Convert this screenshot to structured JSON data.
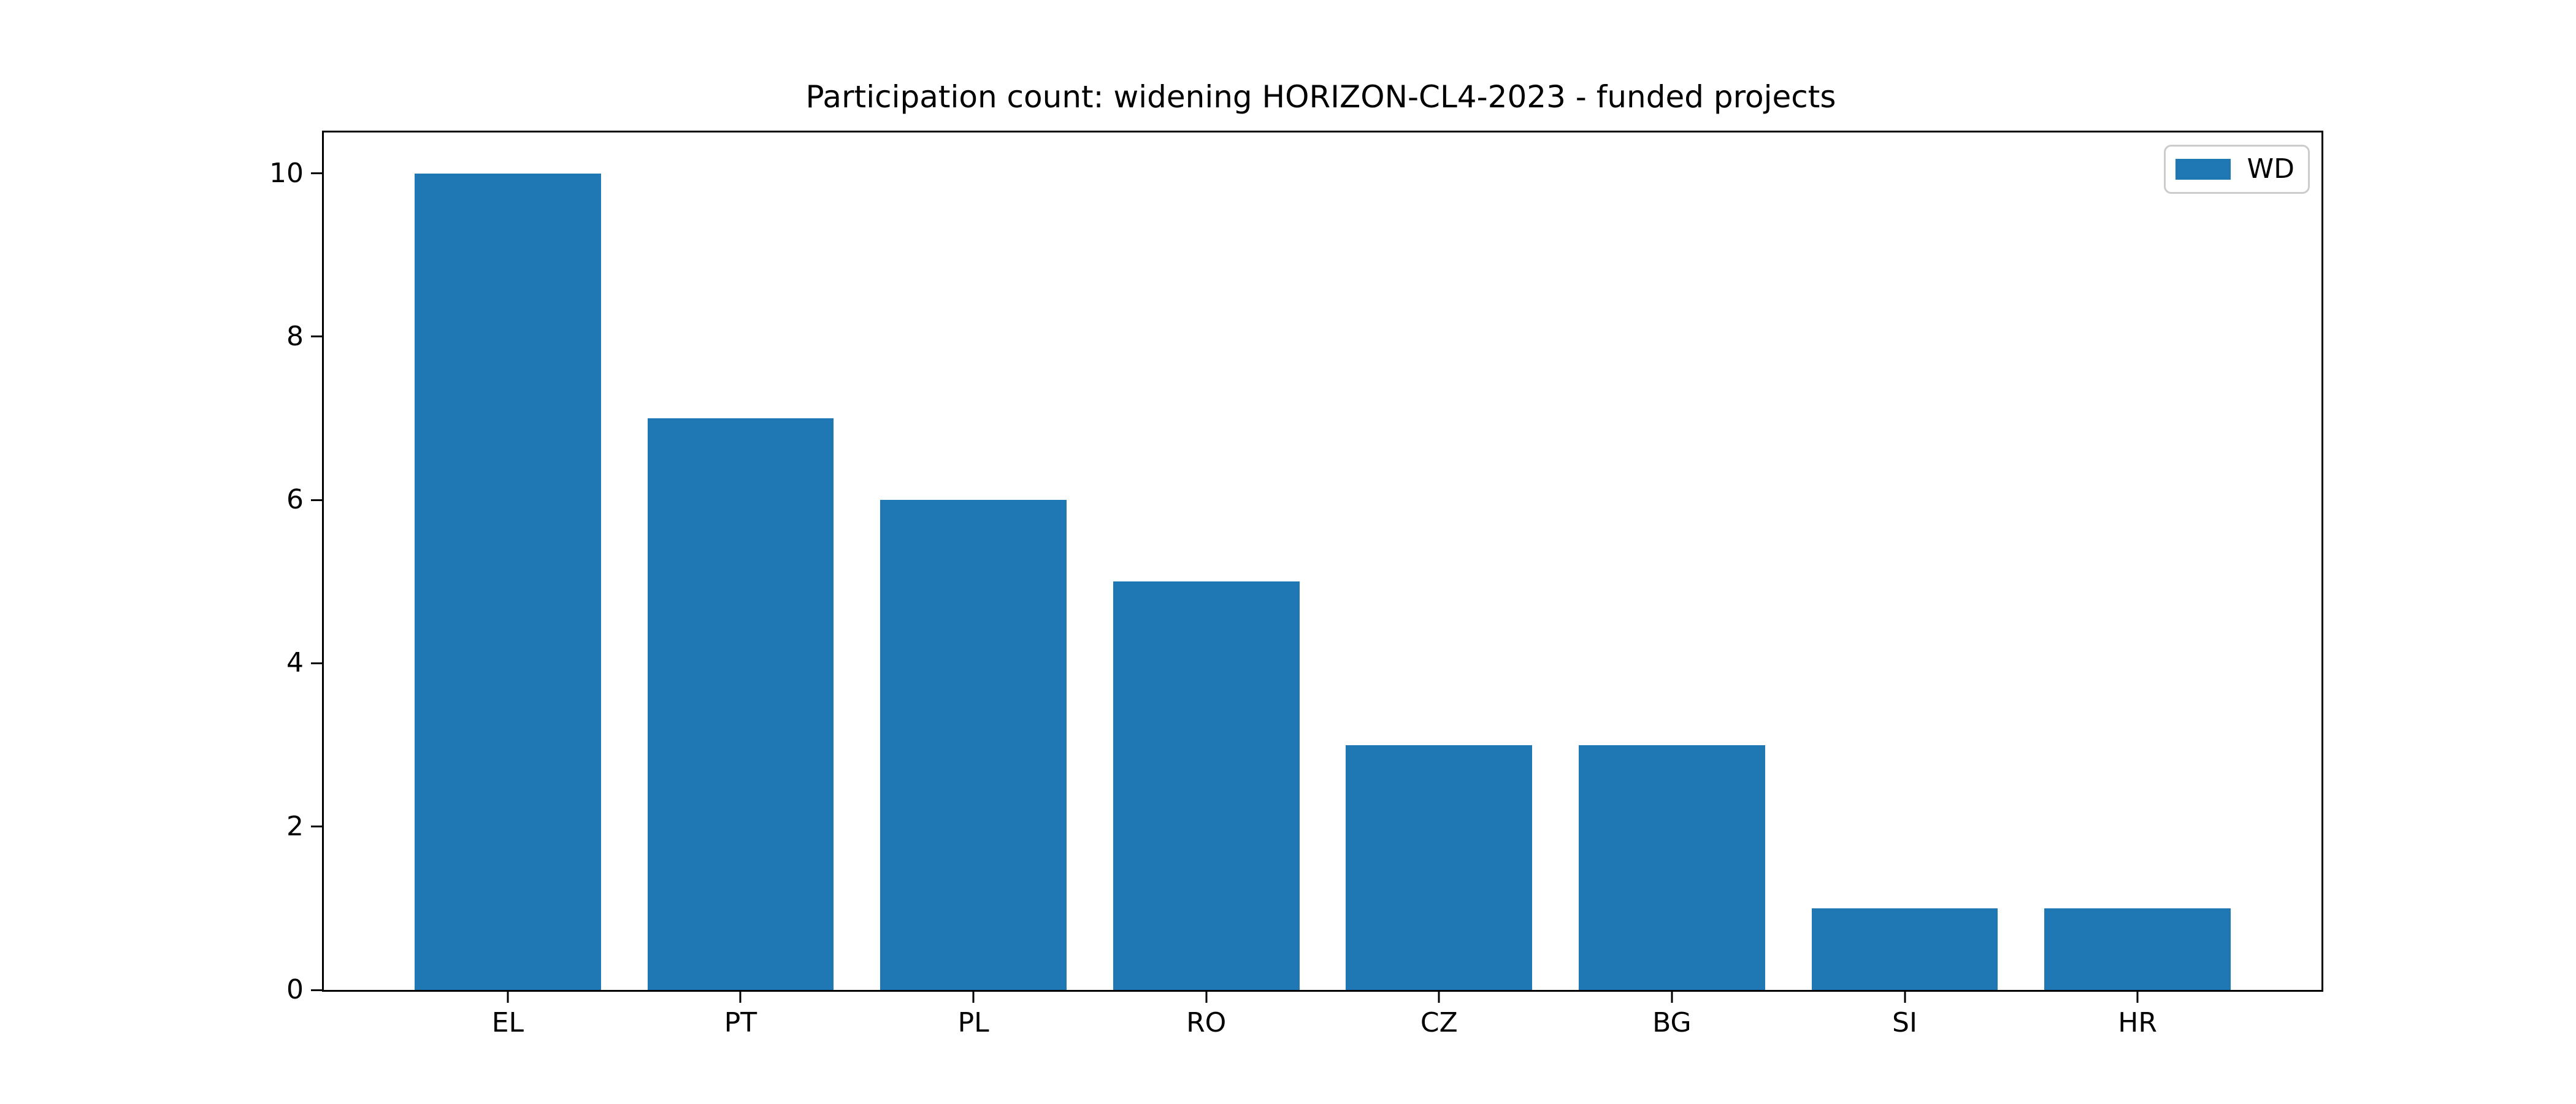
{
  "chart_data": {
    "type": "bar",
    "title": "Participation count: widening HORIZON-CL4-2023 - funded projects",
    "categories": [
      "EL",
      "PT",
      "PL",
      "RO",
      "CZ",
      "BG",
      "SI",
      "HR"
    ],
    "series": [
      {
        "name": "WD",
        "color": "#1f77b4",
        "values": [
          10,
          7,
          6,
          5,
          3,
          3,
          1,
          1
        ]
      }
    ],
    "xlabel": "",
    "ylabel": "",
    "yticks": [
      0,
      2,
      4,
      6,
      8,
      10
    ],
    "ylim": [
      0,
      10.5
    ],
    "grid": false,
    "legend": {
      "position": "upper right",
      "entries": [
        "WD"
      ]
    },
    "colors": {
      "background": "#ffffff",
      "spine": "#000000",
      "text": "#000000",
      "legend_border": "#cccccc"
    }
  }
}
